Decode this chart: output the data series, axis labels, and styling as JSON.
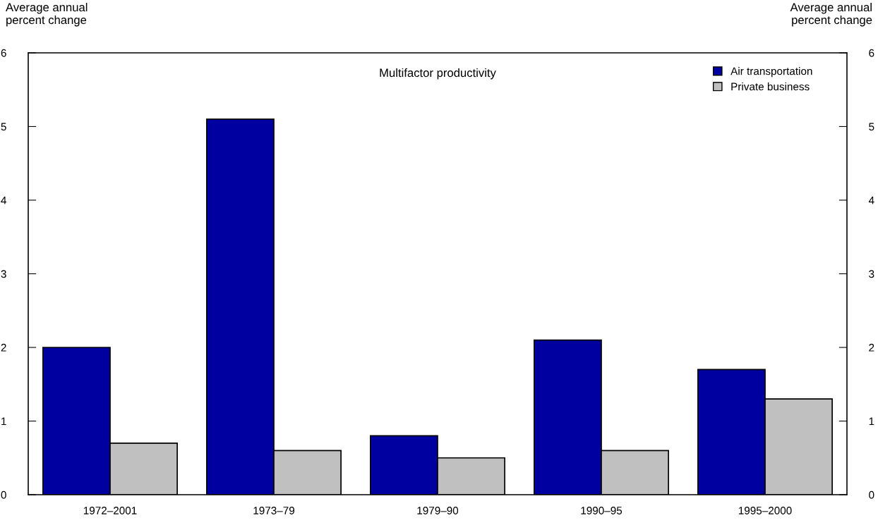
{
  "chart_data": {
    "type": "bar",
    "title": "Multifactor productivity",
    "ylabel": "Average annual\npercent change",
    "y2label": "Average annual\npercent change",
    "categories": [
      "1972–2001",
      "1973–79",
      "1979–90",
      "1990–95",
      "1995–2000"
    ],
    "series": [
      {
        "name": "Air transportation",
        "color": "#0000a0",
        "values": [
          2.0,
          5.1,
          0.8,
          2.1,
          1.7
        ]
      },
      {
        "name": "Private business",
        "color": "#c0c0c0",
        "values": [
          0.7,
          0.6,
          0.5,
          0.6,
          1.3
        ]
      }
    ],
    "ylim": [
      0,
      6
    ],
    "yticks": [
      0,
      1,
      2,
      3,
      4,
      5,
      6
    ],
    "y2lim": [
      0,
      6
    ],
    "y2ticks": [
      0,
      1,
      2,
      3,
      4,
      5,
      6
    ],
    "grid": false,
    "legend": "top right"
  }
}
